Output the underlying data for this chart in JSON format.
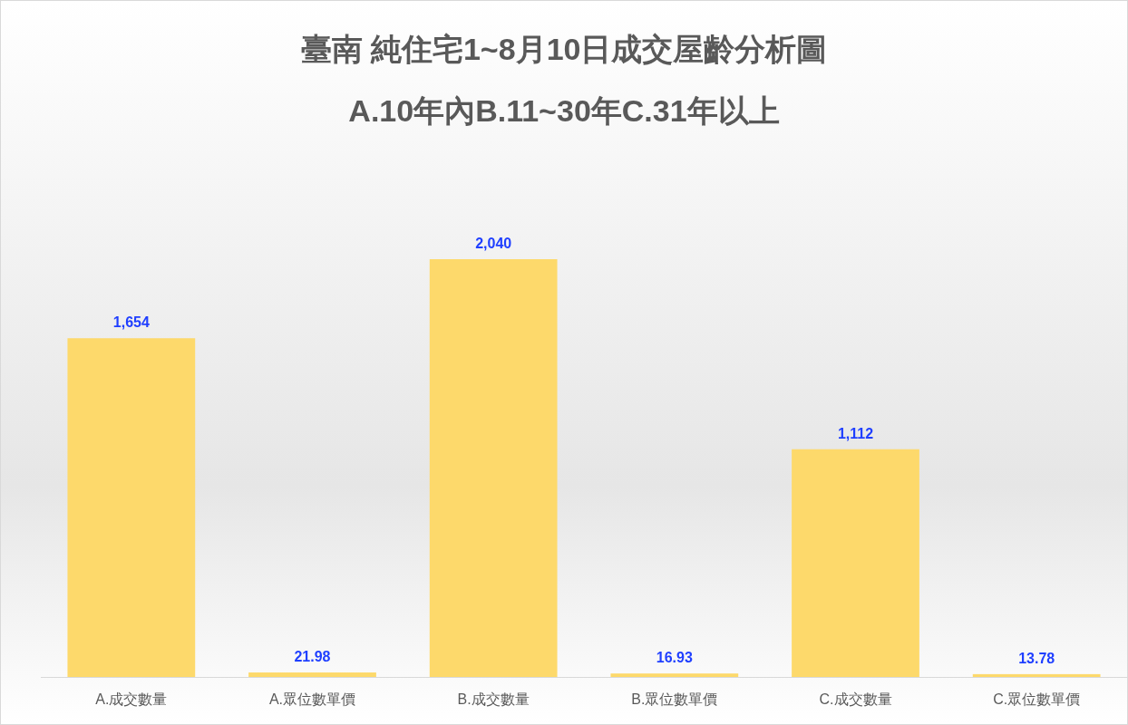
{
  "chart_data": {
    "type": "bar",
    "title": "臺南  純住宅1~8月10日成交屋齡分析圖",
    "subtitle": "A.10年內B.11~30年C.31年以上",
    "categories": [
      "A.成交數量",
      "A.眾位數單價",
      "B.成交數量",
      "B.眾位數單價",
      "C.成交數量",
      "C.眾位數單價"
    ],
    "values": [
      1654,
      21.98,
      2040,
      16.93,
      1112,
      13.78
    ],
    "value_labels": [
      "1,654",
      "21.98",
      "2,040",
      "16.93",
      "1,112",
      "13.78"
    ],
    "color": "#fdd96b",
    "grid": false
  }
}
